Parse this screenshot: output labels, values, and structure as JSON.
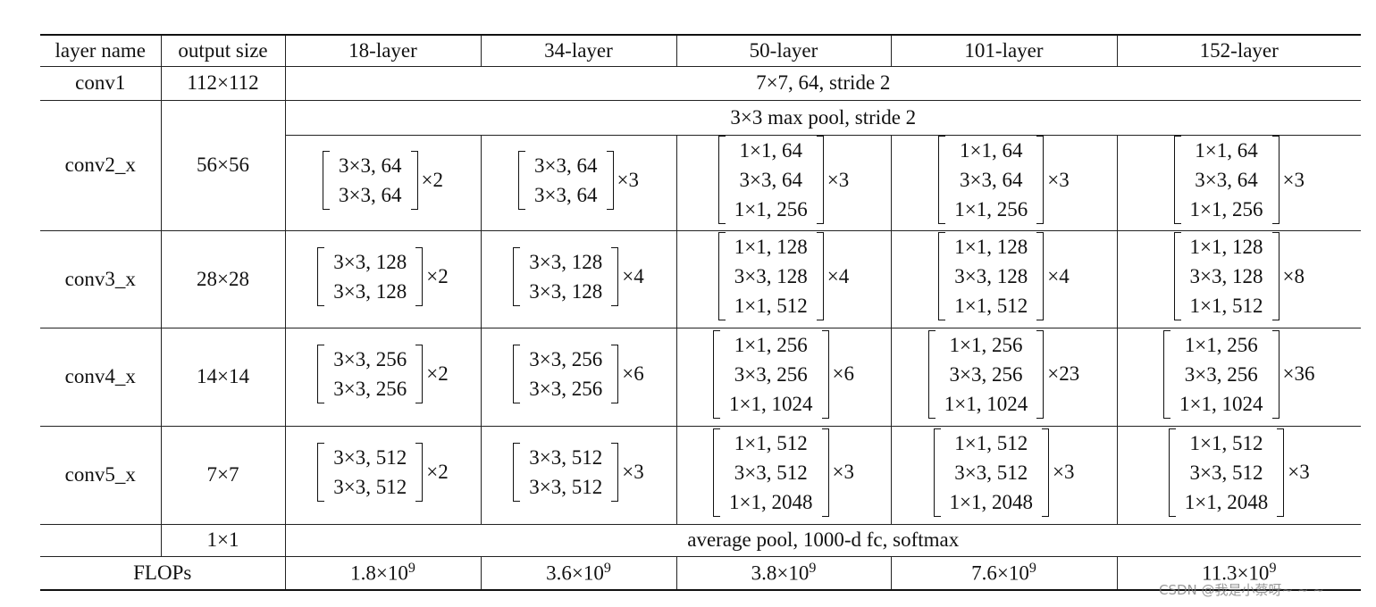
{
  "table": {
    "header": [
      "layer name",
      "output size",
      "18-layer",
      "34-layer",
      "50-layer",
      "101-layer",
      "152-layer"
    ],
    "rows": [
      {
        "layer": "conv1",
        "output": "112×112",
        "shared": "7×7, 64, stride 2"
      },
      {
        "layer": "conv2_x",
        "output": "56×56",
        "shared": "3×3 max pool, stride 2",
        "blocks": [
          {
            "lines": [
              "3×3, 64",
              "3×3, 64"
            ],
            "repeat": "×2"
          },
          {
            "lines": [
              "3×3, 64",
              "3×3, 64"
            ],
            "repeat": "×3"
          },
          {
            "lines": [
              "1×1, 64",
              "3×3, 64",
              "1×1, 256"
            ],
            "repeat": "×3"
          },
          {
            "lines": [
              "1×1, 64",
              "3×3, 64",
              "1×1, 256"
            ],
            "repeat": "×3"
          },
          {
            "lines": [
              "1×1, 64",
              "3×3, 64",
              "1×1, 256"
            ],
            "repeat": "×3"
          }
        ]
      },
      {
        "layer": "conv3_x",
        "output": "28×28",
        "blocks": [
          {
            "lines": [
              "3×3, 128",
              "3×3, 128"
            ],
            "repeat": "×2"
          },
          {
            "lines": [
              "3×3, 128",
              "3×3, 128"
            ],
            "repeat": "×4"
          },
          {
            "lines": [
              "1×1, 128",
              "3×3, 128",
              "1×1, 512"
            ],
            "repeat": "×4"
          },
          {
            "lines": [
              "1×1, 128",
              "3×3, 128",
              "1×1, 512"
            ],
            "repeat": "×4"
          },
          {
            "lines": [
              "1×1, 128",
              "3×3, 128",
              "1×1, 512"
            ],
            "repeat": "×8"
          }
        ]
      },
      {
        "layer": "conv4_x",
        "output": "14×14",
        "blocks": [
          {
            "lines": [
              "3×3, 256",
              "3×3, 256"
            ],
            "repeat": "×2"
          },
          {
            "lines": [
              "3×3, 256",
              "3×3, 256"
            ],
            "repeat": "×6"
          },
          {
            "lines": [
              "1×1, 256",
              "3×3, 256",
              "1×1, 1024"
            ],
            "repeat": "×6"
          },
          {
            "lines": [
              "1×1, 256",
              "3×3, 256",
              "1×1, 1024"
            ],
            "repeat": "×23"
          },
          {
            "lines": [
              "1×1, 256",
              "3×3, 256",
              "1×1, 1024"
            ],
            "repeat": "×36"
          }
        ]
      },
      {
        "layer": "conv5_x",
        "output": "7×7",
        "blocks": [
          {
            "lines": [
              "3×3, 512",
              "3×3, 512"
            ],
            "repeat": "×2"
          },
          {
            "lines": [
              "3×3, 512",
              "3×3, 512"
            ],
            "repeat": "×3"
          },
          {
            "lines": [
              "1×1, 512",
              "3×3, 512",
              "1×1, 2048"
            ],
            "repeat": "×3"
          },
          {
            "lines": [
              "1×1, 512",
              "3×3, 512",
              "1×1, 2048"
            ],
            "repeat": "×3"
          },
          {
            "lines": [
              "1×1, 512",
              "3×3, 512",
              "1×1, 2048"
            ],
            "repeat": "×3"
          }
        ]
      },
      {
        "output": "1×1",
        "shared": "average pool, 1000-d fc, softmax"
      },
      {
        "label": "FLOPs",
        "values": [
          {
            "base": "1.8×10",
            "exp": "9"
          },
          {
            "base": "3.6×10",
            "exp": "9"
          },
          {
            "base": "3.8×10",
            "exp": "9"
          },
          {
            "base": "7.6×10",
            "exp": "9"
          },
          {
            "base": "11.3×10",
            "exp": "9"
          }
        ]
      }
    ]
  },
  "watermark": "CSDN @我是小蔡呀~ ~ ~"
}
